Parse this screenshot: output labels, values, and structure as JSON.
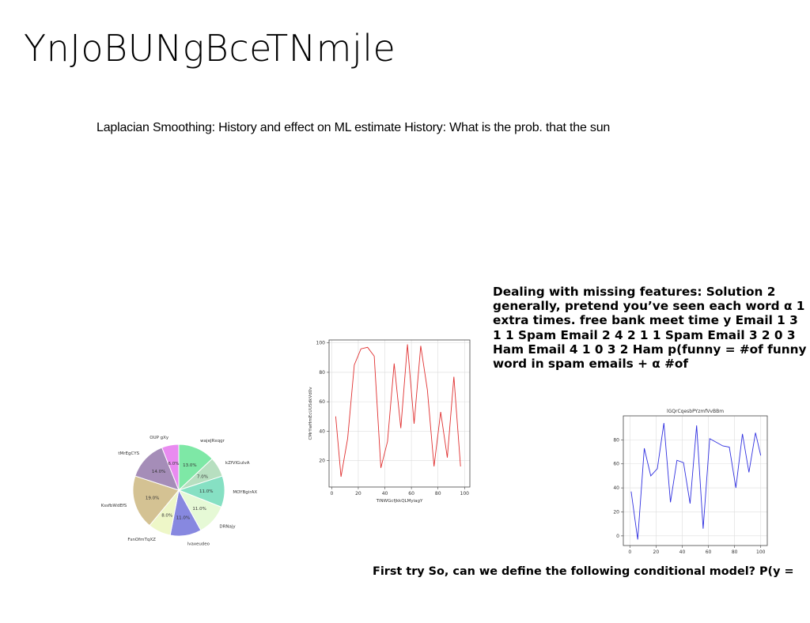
{
  "slide": {
    "title": "YnJoBUNgBceTNmjle",
    "subtitle": "Laplacian Smoothing: History and effect on ML estimate History: What is the prob. that the sun",
    "paragraph": "Dealing with missing features: Solution 2 generally, pretend you’ve seen each word α 1 extra times. free bank meet time y Email 1 3 1 1 Spam Email 2 4 2 1 1 Spam Email 3 2 0 3 Ham Email 4 1 0 3 2 Ham p(funny = #of funny word in spam emails + α #of",
    "footer_text": "First try So, can we define the following conditional model? P(y ="
  },
  "chart_data": [
    {
      "type": "pie",
      "title": "",
      "labels": [
        "wajeJRxqgr",
        "kZfVIGulvA",
        "MOYBgirAX",
        "DRNajy",
        "lvaxeudeo",
        "FsnOfmTqXZ",
        "KssfbWdEfS",
        "tMrEgCYS",
        "OUP gXy"
      ],
      "values": [
        13.0,
        7.0,
        11.0,
        11.0,
        11.0,
        8.0,
        19.0,
        14.0,
        6.0
      ],
      "pct_labels": [
        "13.0%",
        "7.0%",
        "11.0%",
        "11.0%",
        "11.0%",
        "8.0%",
        "19.0%",
        "14.0%",
        "6.0%"
      ],
      "colors": [
        "#7ee8a6",
        "#b7dfc0",
        "#86e0c3",
        "#e6f9d6",
        "#8788e0",
        "#eef7c8",
        "#d4c293",
        "#a58db8",
        "#e98bf0"
      ],
      "start_angle_deg": 90,
      "direction": "clockwise"
    },
    {
      "type": "line",
      "title": "",
      "xlabel": "TlNWGcfjkkQLMyiagY",
      "ylabel": "CMrYwHmEcUUSdkVd0v",
      "color": "#e03030",
      "x": [
        3,
        7,
        12,
        17,
        22,
        27,
        32,
        37,
        42,
        47,
        52,
        57,
        62,
        67,
        72,
        77,
        82,
        87,
        92,
        97
      ],
      "y": [
        50,
        9,
        35,
        85,
        96,
        97,
        91,
        15,
        33,
        86,
        42,
        99,
        45,
        98,
        68,
        16,
        53,
        22,
        77,
        16
      ],
      "xlim": [
        -2,
        104
      ],
      "ylim": [
        2,
        102
      ],
      "xticks": [
        0,
        20,
        40,
        60,
        80,
        100
      ],
      "yticks": [
        20,
        40,
        60,
        80,
        100
      ],
      "grid": true
    },
    {
      "type": "line",
      "title": "lGQrCqesbPYzmfVvBBm",
      "xlabel": "",
      "ylabel": "",
      "color": "#3030e0",
      "x": [
        1,
        6,
        11,
        16,
        21,
        26,
        31,
        36,
        41,
        46,
        51,
        56,
        61,
        66,
        71,
        76,
        81,
        86,
        91,
        96,
        100
      ],
      "y": [
        37,
        -3,
        73,
        50,
        56,
        94,
        28,
        63,
        61,
        27,
        92,
        6,
        81,
        78,
        75,
        74,
        40,
        85,
        53,
        86,
        67
      ],
      "xlim": [
        -5,
        105
      ],
      "ylim": [
        -8,
        100
      ],
      "xticks": [
        0,
        20,
        40,
        60,
        80,
        100
      ],
      "yticks": [
        0,
        20,
        40,
        60,
        80
      ],
      "grid": true
    }
  ]
}
